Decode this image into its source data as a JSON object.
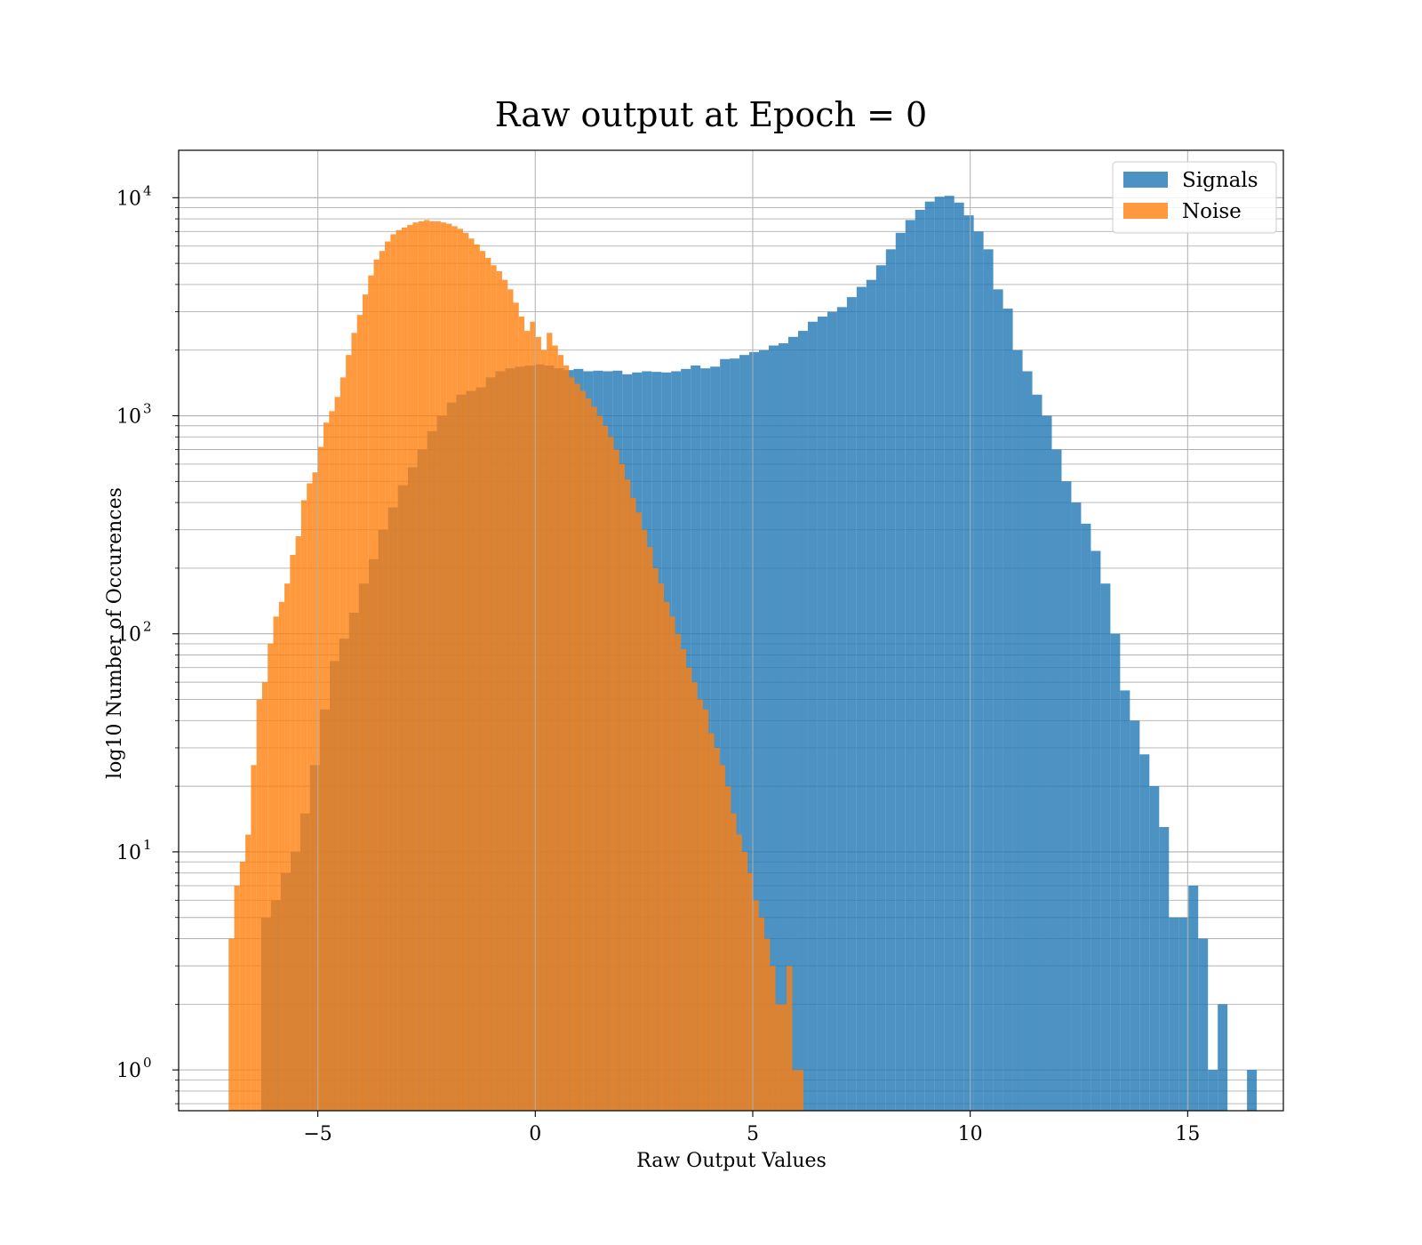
{
  "chart_data": {
    "type": "histogram",
    "title": "Raw output at Epoch = 0",
    "xlabel": "Raw Output Values",
    "ylabel": "log10 Number of Occurences",
    "xlim": [
      -8.2,
      17.2
    ],
    "ylim": [
      0.65,
      16500
    ],
    "yscale": "log",
    "grid": true,
    "legend_position": "top-right",
    "x_ticks": [
      -5,
      0,
      5,
      10,
      15
    ],
    "x_tick_labels": [
      "−5",
      "0",
      "5",
      "10",
      "15"
    ],
    "y_ticks": [
      {
        "value": 1,
        "base": "10",
        "exp": "0"
      },
      {
        "value": 10,
        "base": "10",
        "exp": "1"
      },
      {
        "value": 100,
        "base": "10",
        "exp": "2"
      },
      {
        "value": 1000,
        "base": "10",
        "exp": "3"
      },
      {
        "value": 10000,
        "base": "10",
        "exp": "4"
      }
    ],
    "series": [
      {
        "name": "Signals",
        "color": "#1f77b4",
        "x_start": -6.3,
        "bin_width": 0.2244,
        "counts": [
          5,
          6,
          8,
          10,
          15,
          25,
          45,
          75,
          95,
          125,
          170,
          220,
          300,
          380,
          480,
          580,
          700,
          850,
          1000,
          1150,
          1250,
          1300,
          1350,
          1500,
          1600,
          1650,
          1680,
          1700,
          1720,
          1700,
          1650,
          1620,
          1640,
          1600,
          1610,
          1600,
          1610,
          1550,
          1580,
          1600,
          1590,
          1580,
          1600,
          1640,
          1700,
          1650,
          1680,
          1820,
          1830,
          1900,
          1960,
          2000,
          2100,
          2150,
          2300,
          2450,
          2700,
          2850,
          3000,
          3150,
          3500,
          3900,
          4200,
          4900,
          5800,
          6900,
          7900,
          8800,
          9600,
          10100,
          10200,
          9500,
          8300,
          7000,
          5800,
          3800,
          3100,
          2000,
          1600,
          1250,
          1000,
          700,
          500,
          400,
          320,
          240,
          170,
          100,
          55,
          40,
          28,
          20,
          13,
          5,
          5,
          7,
          4,
          1,
          2,
          0,
          0,
          1
        ]
      },
      {
        "name": "Noise",
        "color": "#ff7f0e",
        "x_start": -7.05,
        "bin_width": 0.1283,
        "counts": [
          4,
          7,
          9,
          12,
          25,
          50,
          60,
          90,
          120,
          140,
          170,
          230,
          280,
          410,
          490,
          550,
          720,
          930,
          1050,
          1220,
          1500,
          1900,
          2400,
          2900,
          3600,
          4400,
          5200,
          5700,
          6300,
          6800,
          7100,
          7300,
          7500,
          7700,
          7800,
          7900,
          7800,
          7800,
          7700,
          7600,
          7400,
          7200,
          6900,
          6500,
          6100,
          5700,
          5300,
          4900,
          4600,
          4200,
          3800,
          3300,
          2850,
          2450,
          2700,
          2300,
          2000,
          2400,
          2100,
          1900,
          1700,
          1500,
          1400,
          1300,
          1200,
          1100,
          1000,
          900,
          800,
          700,
          600,
          510,
          420,
          360,
          300,
          250,
          200,
          170,
          140,
          120,
          100,
          85,
          70,
          60,
          50,
          45,
          35,
          30,
          25,
          20,
          15,
          12,
          10,
          8,
          6,
          5,
          4,
          3,
          2,
          2,
          3,
          1,
          1
        ]
      }
    ]
  }
}
